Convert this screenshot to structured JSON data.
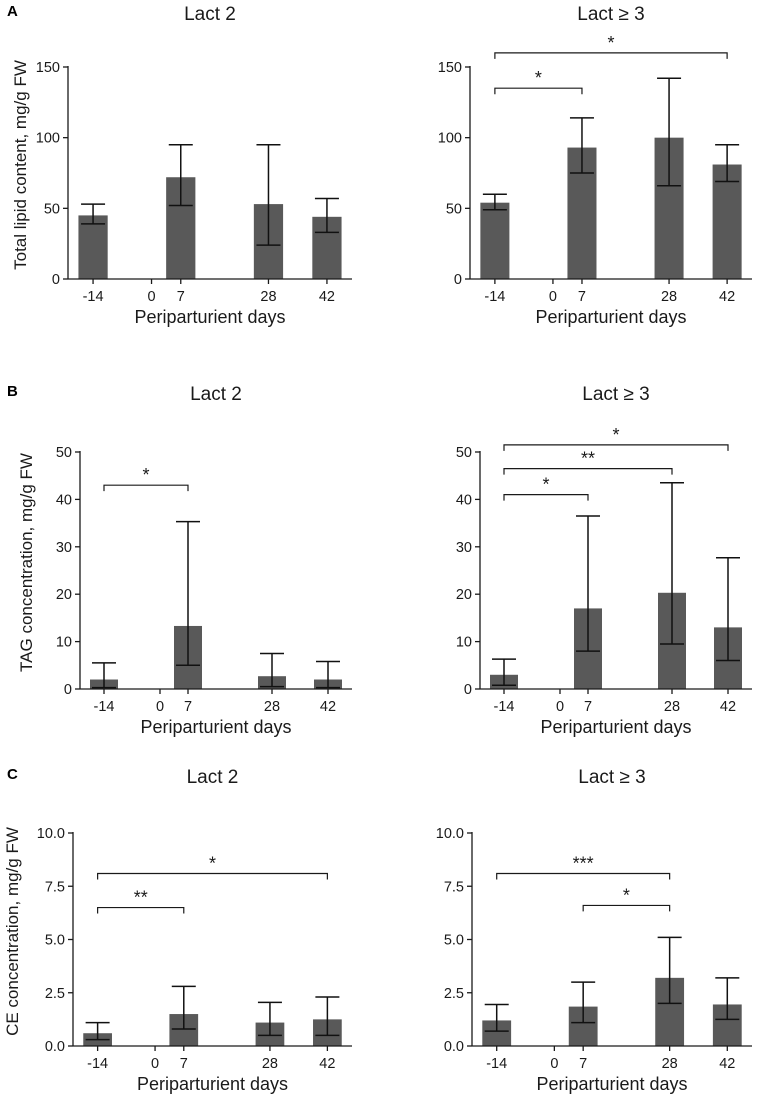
{
  "chart_data": [
    {
      "type": "bar",
      "panel": "A",
      "title": "Lact 2",
      "xlabel": "Periparturient days",
      "ylabel": "Total lipid content, mg/g FW",
      "ylim": [
        0,
        150
      ],
      "yticks": [
        0,
        50,
        100,
        150
      ],
      "ytick_labels": [
        "0",
        "50",
        "100",
        "150"
      ],
      "xticks": [
        -14,
        0,
        7,
        28,
        42
      ],
      "xtick_labels": [
        "-14",
        "0",
        "7",
        "28",
        "42"
      ],
      "categories": [
        "-14",
        "7",
        "28",
        "42"
      ],
      "values": [
        45,
        72,
        53,
        44
      ],
      "err_low": [
        39,
        52,
        24,
        33
      ],
      "err_high": [
        53,
        95,
        95,
        57
      ],
      "significance": []
    },
    {
      "type": "bar",
      "panel": "",
      "title": "Lact ≥ 3",
      "xlabel": "Periparturient days",
      "ylabel": "",
      "ylim": [
        0,
        150
      ],
      "yticks": [
        0,
        50,
        100,
        150
      ],
      "ytick_labels": [
        "0",
        "50",
        "100",
        "150"
      ],
      "xticks": [
        -14,
        0,
        7,
        28,
        42
      ],
      "xtick_labels": [
        "-14",
        "0",
        "7",
        "28",
        "42"
      ],
      "categories": [
        "-14",
        "7",
        "28",
        "42"
      ],
      "values": [
        54,
        93,
        100,
        81
      ],
      "err_low": [
        49,
        75,
        66,
        69
      ],
      "err_high": [
        60,
        114,
        142,
        95
      ],
      "significance": [
        {
          "from": "-14",
          "to": "7",
          "label": "*",
          "level": 135
        },
        {
          "from": "-14",
          "to": "42",
          "label": "*",
          "level": 160
        }
      ]
    },
    {
      "type": "bar",
      "panel": "B",
      "title": "Lact 2",
      "xlabel": "Periparturient days",
      "ylabel": "TAG concentration, mg/g FW",
      "ylim": [
        0,
        50
      ],
      "yticks": [
        0,
        10,
        20,
        30,
        40,
        50
      ],
      "ytick_labels": [
        "0",
        "10",
        "20",
        "30",
        "40",
        "50"
      ],
      "xticks": [
        -14,
        0,
        7,
        28,
        42
      ],
      "xtick_labels": [
        "-14",
        "0",
        "7",
        "28",
        "42"
      ],
      "categories": [
        "-14",
        "7",
        "28",
        "42"
      ],
      "values": [
        2,
        13.3,
        2.7,
        2
      ],
      "err_low": [
        0.3,
        5,
        0.5,
        0.3
      ],
      "err_high": [
        5.5,
        35.3,
        7.5,
        5.8
      ],
      "significance": [
        {
          "from": "-14",
          "to": "7",
          "label": "*",
          "level": 43
        }
      ]
    },
    {
      "type": "bar",
      "panel": "",
      "title": "Lact ≥ 3",
      "xlabel": "Periparturient days",
      "ylabel": "",
      "ylim": [
        0,
        50
      ],
      "yticks": [
        0,
        10,
        20,
        30,
        40,
        50
      ],
      "ytick_labels": [
        "0",
        "10",
        "20",
        "30",
        "40",
        "50"
      ],
      "xticks": [
        -14,
        0,
        7,
        28,
        42
      ],
      "xtick_labels": [
        "-14",
        "0",
        "7",
        "28",
        "42"
      ],
      "categories": [
        "-14",
        "7",
        "28",
        "42"
      ],
      "values": [
        3,
        17,
        20.3,
        13
      ],
      "err_low": [
        0.8,
        8,
        9.5,
        6
      ],
      "err_high": [
        6.3,
        36.5,
        43.5,
        27.7
      ],
      "significance": [
        {
          "from": "-14",
          "to": "7",
          "label": "*",
          "level": 41
        },
        {
          "from": "-14",
          "to": "28",
          "label": "**",
          "level": 46.5
        },
        {
          "from": "-14",
          "to": "42",
          "label": "*",
          "level": 51.5
        }
      ]
    },
    {
      "type": "bar",
      "panel": "C",
      "title": "Lact 2",
      "xlabel": "Periparturient days",
      "ylabel": "CE concentration, mg/g FW",
      "ylim": [
        0,
        10
      ],
      "yticks": [
        0,
        2.5,
        5,
        7.5,
        10
      ],
      "ytick_labels": [
        "0.0",
        "2.5",
        "5.0",
        "7.5",
        "10.0"
      ],
      "xticks": [
        -14,
        0,
        7,
        28,
        42
      ],
      "xtick_labels": [
        "-14",
        "0",
        "7",
        "28",
        "42"
      ],
      "categories": [
        "-14",
        "7",
        "28",
        "42"
      ],
      "values": [
        0.6,
        1.5,
        1.1,
        1.25
      ],
      "err_low": [
        0.3,
        0.8,
        0.5,
        0.5
      ],
      "err_high": [
        1.1,
        2.8,
        2.05,
        2.3
      ],
      "significance": [
        {
          "from": "-14",
          "to": "7",
          "label": "**",
          "level": 6.5
        },
        {
          "from": "-14",
          "to": "42",
          "label": "*",
          "level": 8.1
        }
      ]
    },
    {
      "type": "bar",
      "panel": "",
      "title": "Lact ≥ 3",
      "xlabel": "Periparturient days",
      "ylabel": "",
      "ylim": [
        0,
        10
      ],
      "yticks": [
        0,
        2.5,
        5,
        7.5,
        10
      ],
      "ytick_labels": [
        "0.0",
        "2.5",
        "5.0",
        "7.5",
        "10.0"
      ],
      "xticks": [
        -14,
        0,
        7,
        28,
        42
      ],
      "xtick_labels": [
        "-14",
        "0",
        "7",
        "28",
        "42"
      ],
      "categories": [
        "-14",
        "7",
        "28",
        "42"
      ],
      "values": [
        1.2,
        1.85,
        3.2,
        1.95
      ],
      "err_low": [
        0.7,
        1.1,
        2.0,
        1.25
      ],
      "err_high": [
        1.95,
        3.0,
        5.1,
        3.2
      ],
      "significance": [
        {
          "from": "-14",
          "to": "28",
          "label": "***",
          "level": 8.1
        },
        {
          "from": "7",
          "to": "28",
          "label": "*",
          "level": 6.6
        }
      ]
    }
  ]
}
